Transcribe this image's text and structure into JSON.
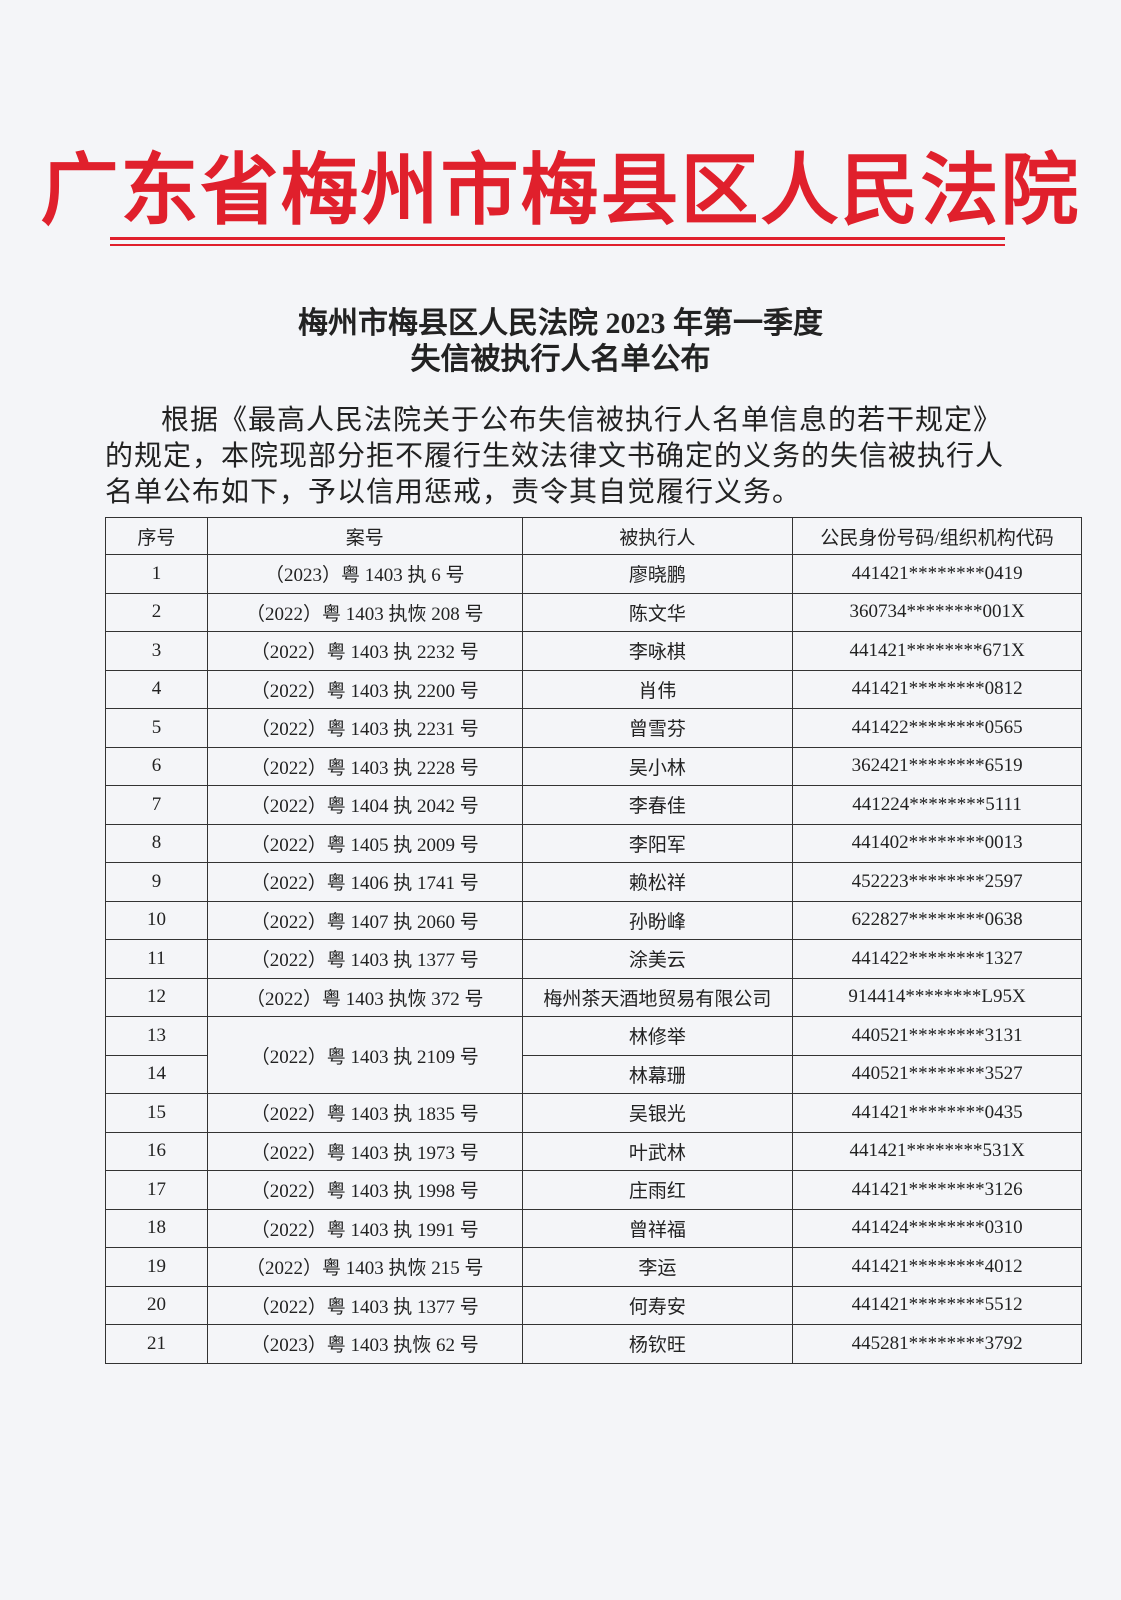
{
  "header": {
    "court": "广东省梅州市梅县区人民法院"
  },
  "document": {
    "title_lines": [
      "梅州市梅县区人民法院 2023 年第一季度",
      "失信被执行人名单公布"
    ],
    "paragraph": "根据《最高人民法院关于公布失信被执行人名单信息的若干规定》的规定，本院现部分拒不履行生效法律文书确定的义务的失信被执行人名单公布如下，予以信用惩戒，责令其自觉履行义务。"
  },
  "table": {
    "headers": [
      "序号",
      "案号",
      "被执行人",
      "公民身份号码/组织机构代码"
    ],
    "rows": [
      {
        "no": "1",
        "case": "（2023）粤 1403 执 6 号",
        "name": "廖晓鹏",
        "id": "441421********0419"
      },
      {
        "no": "2",
        "case": "（2022）粤 1403 执恢 208 号",
        "name": "陈文华",
        "id": "360734********001X"
      },
      {
        "no": "3",
        "case": "（2022）粤 1403 执 2232 号",
        "name": "李咏棋",
        "id": "441421********671X"
      },
      {
        "no": "4",
        "case": "（2022）粤 1403 执 2200 号",
        "name": "肖伟",
        "id": "441421********0812"
      },
      {
        "no": "5",
        "case": "（2022）粤 1403 执 2231 号",
        "name": "曾雪芬",
        "id": "441422********0565"
      },
      {
        "no": "6",
        "case": "（2022）粤 1403 执 2228 号",
        "name": "吴小林",
        "id": "362421********6519"
      },
      {
        "no": "7",
        "case": "（2022）粤 1404 执 2042 号",
        "name": "李春佳",
        "id": "441224********5111"
      },
      {
        "no": "8",
        "case": "（2022）粤 1405 执 2009 号",
        "name": "李阳军",
        "id": "441402********0013"
      },
      {
        "no": "9",
        "case": "（2022）粤 1406 执 1741 号",
        "name": "赖松祥",
        "id": "452223********2597"
      },
      {
        "no": "10",
        "case": "（2022）粤 1407 执 2060 号",
        "name": "孙盼峰",
        "id": "622827********0638"
      },
      {
        "no": "11",
        "case": "（2022）粤 1403 执 1377 号",
        "name": "涂美云",
        "id": "441422********1327"
      },
      {
        "no": "12",
        "case": "（2022）粤 1403 执恢 372 号",
        "name": "梅州茶天酒地贸易有限公司",
        "id": "914414********L95X"
      },
      {
        "no": "13",
        "case": "（2022）粤 1403 执 2109 号",
        "name": "林修举",
        "id": "440521********3131"
      },
      {
        "no": "14",
        "name": "林幕珊",
        "id": "440521********3527"
      },
      {
        "no": "15",
        "case": "（2022）粤 1403 执 1835 号",
        "name": "吴银光",
        "id": "441421********0435"
      },
      {
        "no": "16",
        "case": "（2022）粤 1403 执 1973 号",
        "name": "叶武林",
        "id": "441421********531X"
      },
      {
        "no": "17",
        "case": "（2022）粤 1403 执 1998 号",
        "name": "庄雨红",
        "id": "441421********3126"
      },
      {
        "no": "18",
        "case": "（2022）粤 1403 执 1991 号",
        "name": "曾祥福",
        "id": "441424********0310"
      },
      {
        "no": "19",
        "case": "（2022）粤 1403 执恢 215 号",
        "name": "李运",
        "id": "441421********4012"
      },
      {
        "no": "20",
        "case": "（2022）粤 1403 执 1377 号",
        "name": "何寿安",
        "id": "441421********5512"
      },
      {
        "no": "21",
        "case": "（2023）粤 1403 执恢 62 号",
        "name": "杨钦旺",
        "id": "445281********3792"
      }
    ]
  }
}
